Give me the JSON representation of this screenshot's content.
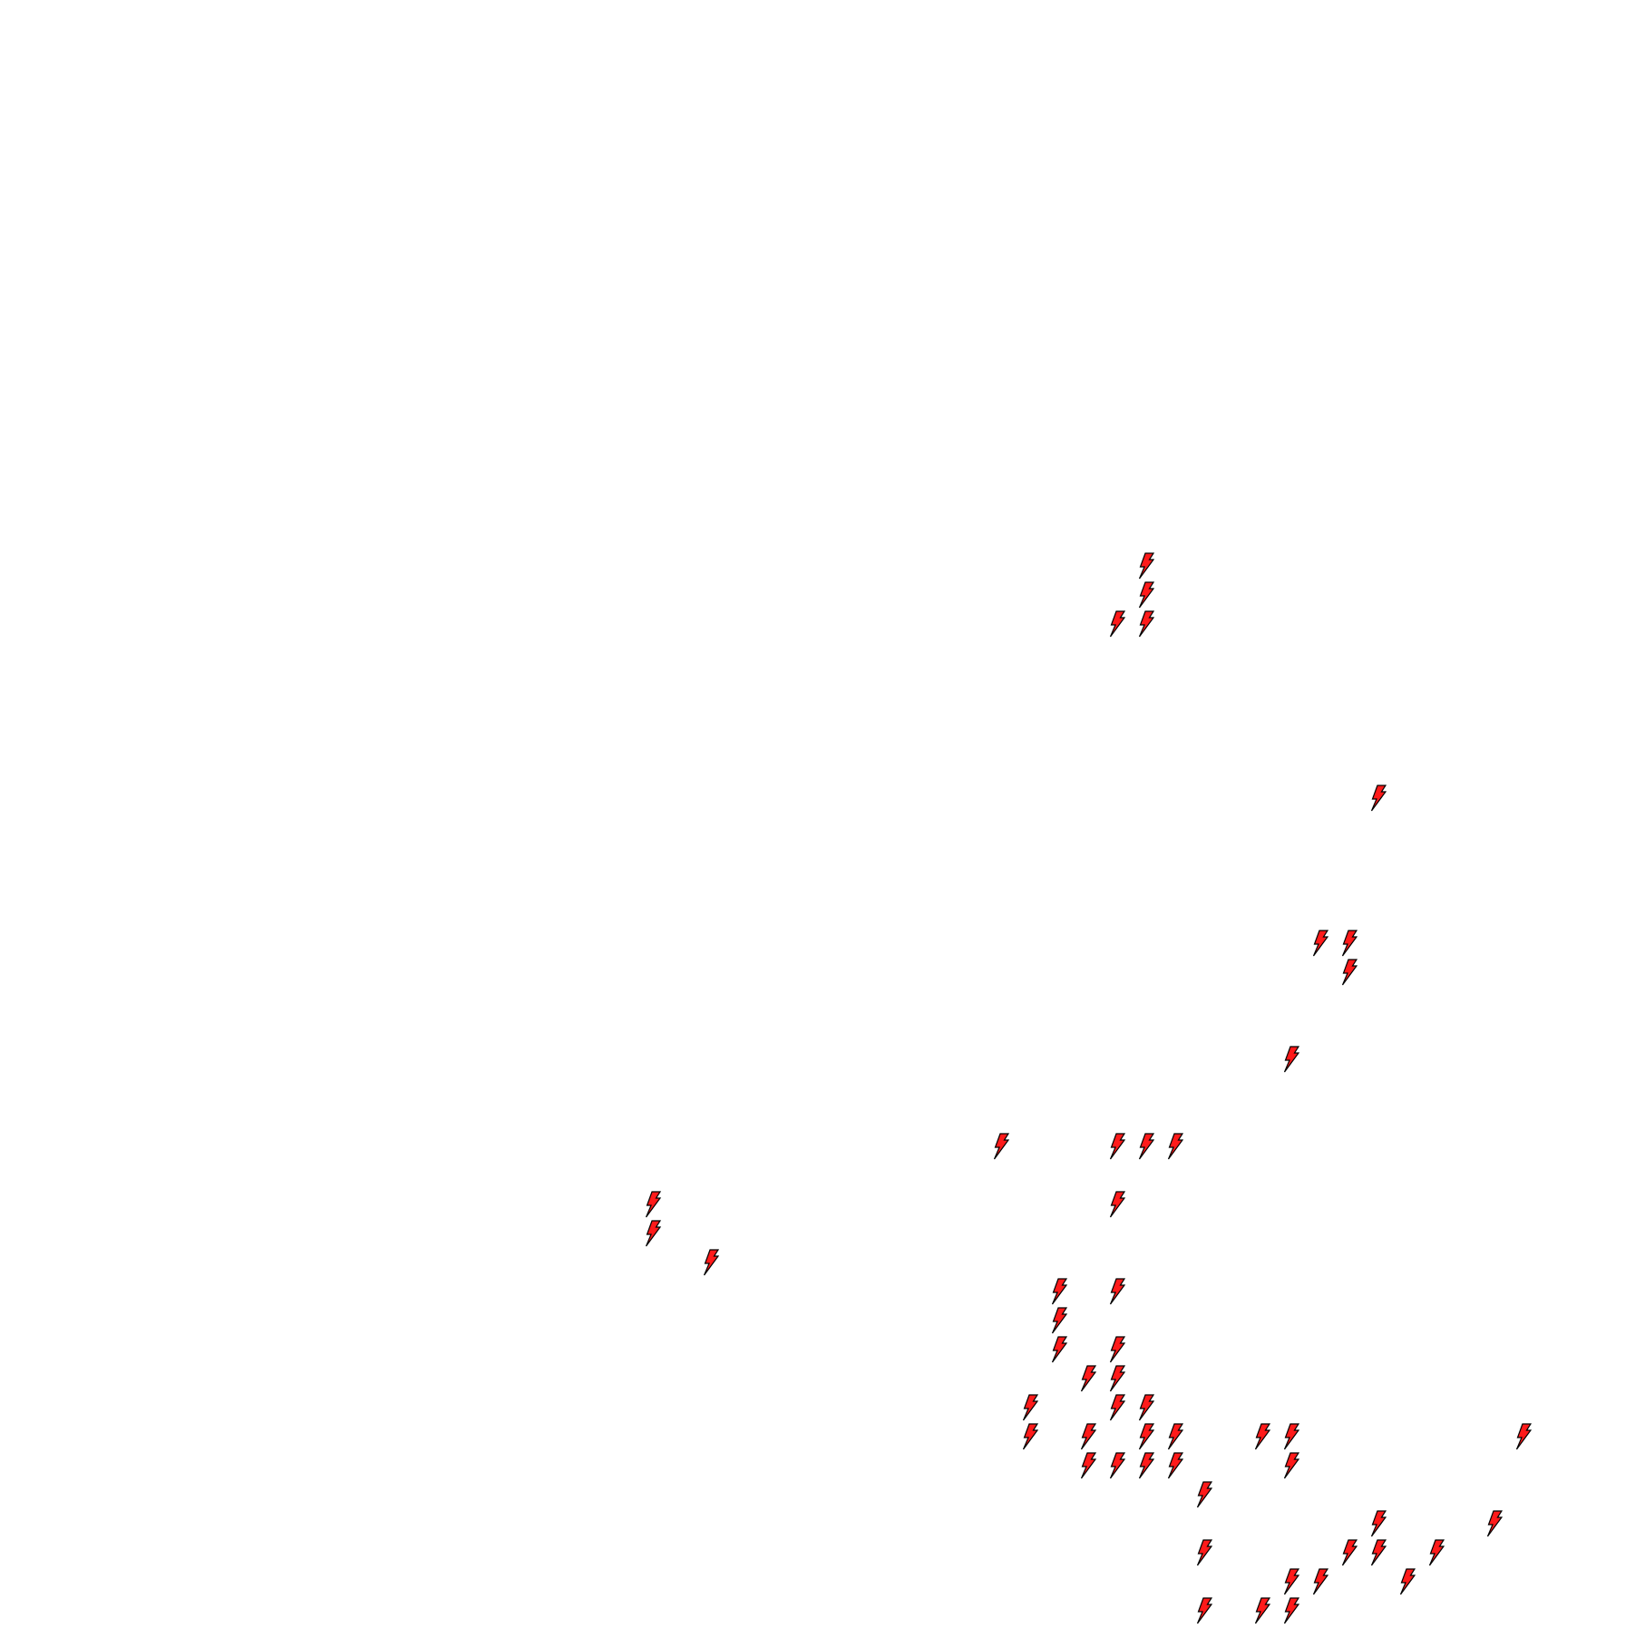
{
  "map": {
    "background_color": "#ffffff",
    "marker": {
      "icon": "lightning-bolt-icon",
      "fill_color": "#ff1a1a",
      "stroke_color": "#000000"
    }
  }
}
